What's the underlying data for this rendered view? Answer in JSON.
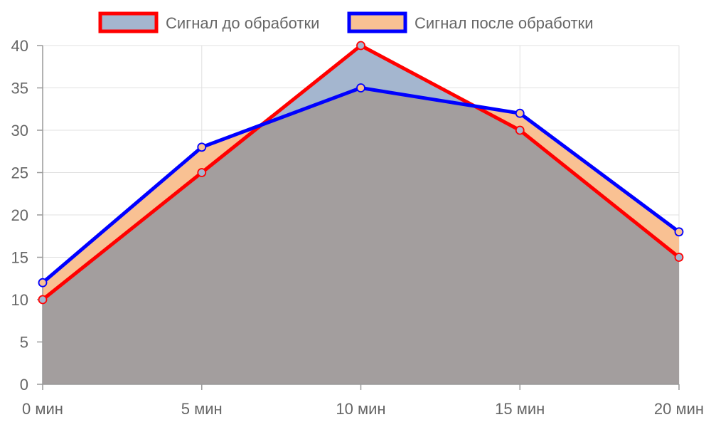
{
  "chart_data": {
    "type": "area",
    "categories": [
      "0 мин",
      "5 мин",
      "10 мин",
      "15 мин",
      "20 мин"
    ],
    "series": [
      {
        "name": "Сигнал до обработки",
        "values": [
          10,
          25,
          40,
          30,
          15
        ],
        "line_color": "#ff0000",
        "fill_color": "#a4b6cf"
      },
      {
        "name": "Сигнал после обработки",
        "values": [
          12,
          28,
          35,
          32,
          18
        ],
        "line_color": "#0000ff",
        "fill_color": "#f9c193"
      }
    ],
    "overlap_fill_color": "#a39e9e",
    "ylim": [
      0,
      40
    ],
    "yticks": [
      "0",
      "5",
      "10",
      "15",
      "20",
      "25",
      "30",
      "35",
      "40"
    ],
    "grid": true,
    "legend_position": "top"
  }
}
